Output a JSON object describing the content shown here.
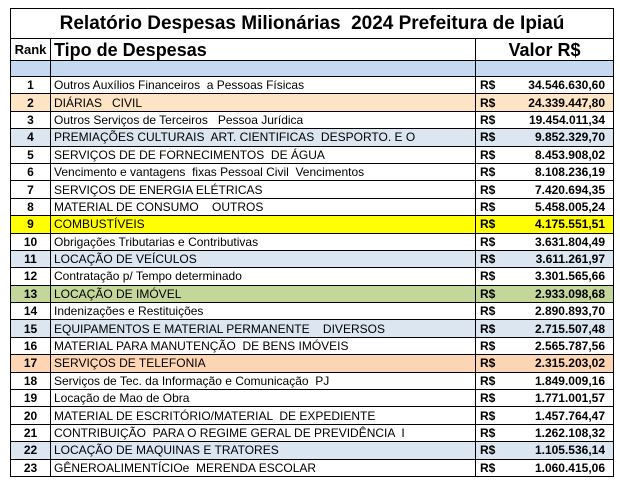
{
  "title": "Relatório Despesas Milionárias  2024 Prefeitura de Ipiaú",
  "header": {
    "rank": "Rank",
    "tipo": "Tipo de Despesas",
    "valor": "Valor R$"
  },
  "table": {
    "rows": [
      [
        "1",
        "Outros Auxílios Financeiros  a Pessoas Físicas",
        "R$",
        "34.546.630,60"
      ],
      [
        "2",
        "DIÁRIAS   CIVIL",
        "R$",
        "24.339.447,80"
      ],
      [
        "3",
        "Outros Serviços de Terceiros   Pessoa Jurídica",
        "R$",
        "19.454.011,34"
      ],
      [
        "4",
        "PREMIAÇÕES CULTURAIS  ART. CIENTIFICAS  DESPORTO. E O",
        "R$",
        "9.852.329,70"
      ],
      [
        "5",
        "SERVIÇOS DE DE FORNECIMENTOS  DE ÁGUA",
        "R$",
        "8.453.908,02"
      ],
      [
        "6",
        "Vencimento e vantagens  fixas Pessoal Civil  Vencimentos",
        "R$",
        "8.108.236,19"
      ],
      [
        "7",
        "SERVIÇOS DE ENERGIA ELÉTRICAS",
        "R$",
        "7.420.694,35"
      ],
      [
        "8",
        "MATERIAL DE CONSUMO    OUTROS",
        "R$",
        "5.458.005,24"
      ],
      [
        "9",
        "COMBUSTÍVEIS",
        "R$",
        "4.175.551,51"
      ],
      [
        "10",
        "Obrigações Tributarias e Contributivas",
        "R$",
        "3.631.804,49"
      ],
      [
        "11",
        "LOCAÇÃO DE VEÍCULOS",
        "R$",
        "3.611.261,97"
      ],
      [
        "12",
        "Contratação p/ Tempo determinado",
        "R$",
        "3.301.565,66"
      ],
      [
        "13",
        "LOCAÇÃO DE IMÓVEL",
        "R$",
        "2.933.098,68"
      ],
      [
        "14",
        "Indenizações e Restituições",
        "R$",
        "2.890.893,70"
      ],
      [
        "15",
        "EQUIPAMENTOS E MATERIAL PERMANENTE    DIVERSOS",
        "R$",
        "2.715.507,48"
      ],
      [
        "16",
        "MATERIAL PARA MANUTENÇÃO  DE BENS IMÓVEIS",
        "R$",
        "2.565.787,56"
      ],
      [
        "17",
        "SERVIÇOS DE TELEFONIA",
        "R$",
        "2.315.203,02"
      ],
      [
        "18",
        "Serviços de Tec. da Informação e Comunicação  PJ",
        "R$",
        "1.849.009,16"
      ],
      [
        "19",
        "Locação de Mao de Obra",
        "R$",
        "1.771.001,57"
      ],
      [
        "20",
        "MATERIAL DE ESCRITÓRIO/MATERIAL  DE EXPEDIENTE",
        "R$",
        "1.457.764,47"
      ],
      [
        "21",
        "CONTRIBUIÇÃO  PARA O REGIME GERAL DE PREVIDÊNCIA  I",
        "R$",
        "1.262.108,32"
      ],
      [
        "22",
        "LOCAÇÃO DE MAQUINAS E TRATORES",
        "R$",
        "1.105.536,14"
      ],
      [
        "23",
        "GÊNEROALIMENTÍCIOe  MERENDA ESCOLAR",
        "R$",
        "1.060.415,06"
      ]
    ]
  }
}
